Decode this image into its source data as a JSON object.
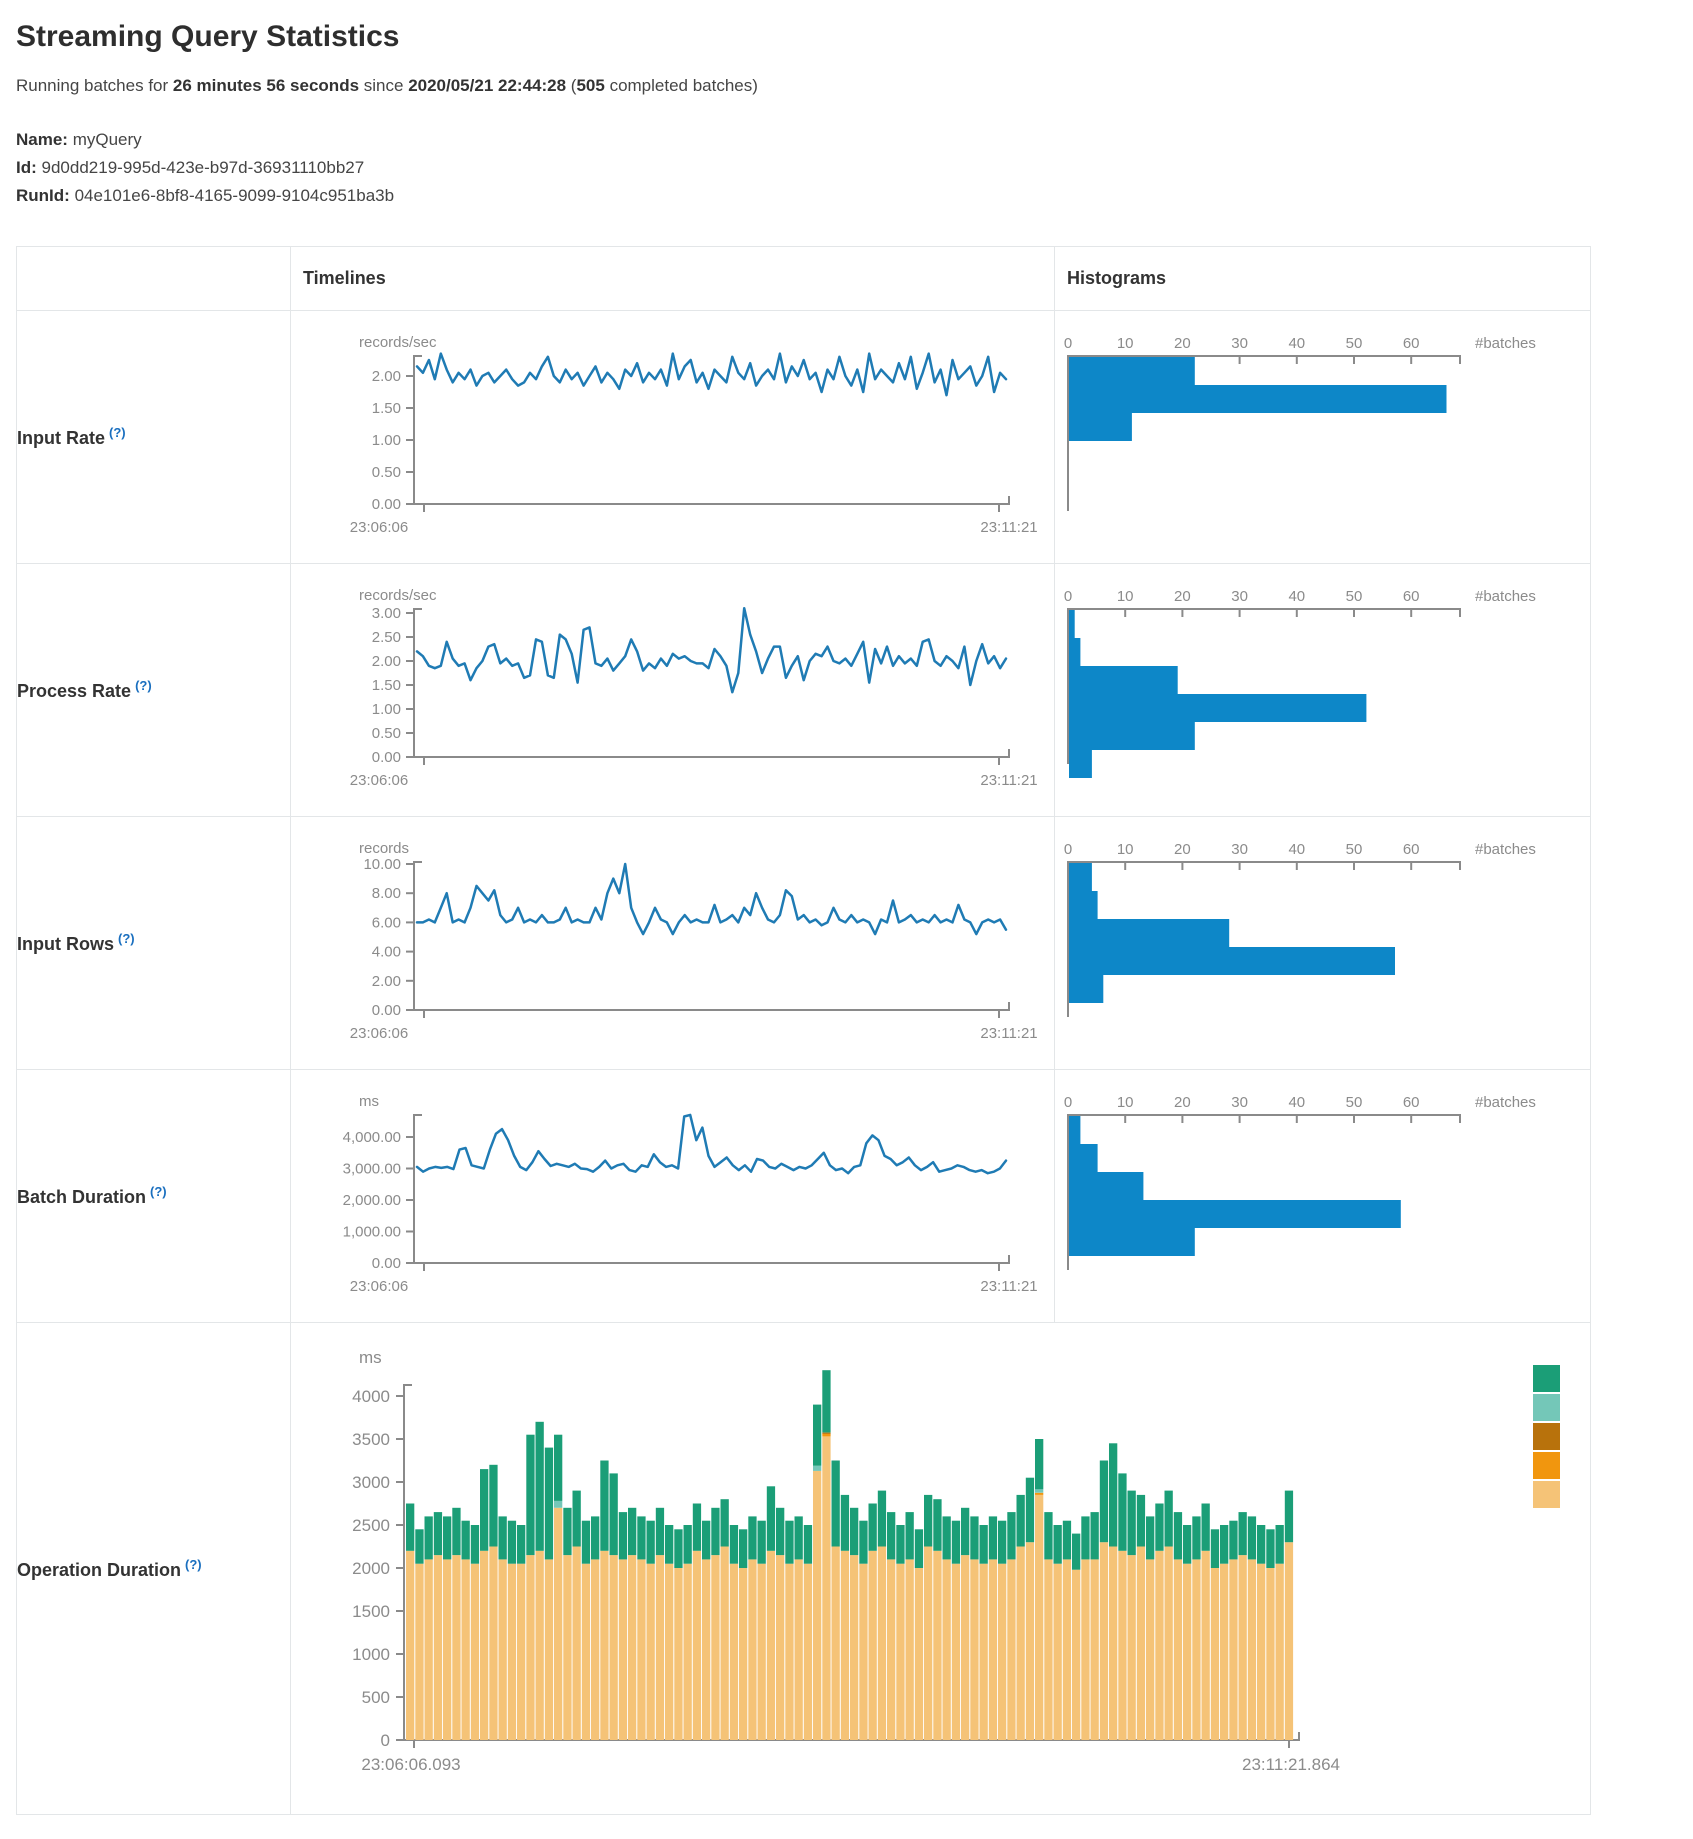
{
  "header": {
    "title": "Streaming Query Statistics",
    "running_prefix": "Running batches for",
    "duration": "26 minutes 56 seconds",
    "since_word": "since",
    "start_time": "2020/05/21 22:44:28",
    "batches_open": "(",
    "batches_count": "505",
    "batches_suffix": "completed batches)",
    "name_label": "Name:",
    "name_value": "myQuery",
    "id_label": "Id:",
    "id_value": "9d0dd219-995d-423e-b97d-36931110bb27",
    "runid_label": "RunId:",
    "runid_value": "04e101e6-8bf8-4165-9099-9104c951ba3b"
  },
  "columns": {
    "timelines": "Timelines",
    "histograms": "Histograms"
  },
  "rows": [
    {
      "label": "Input Rate",
      "help": "(?)"
    },
    {
      "label": "Process Rate",
      "help": "(?)"
    },
    {
      "label": "Input Rows",
      "help": "(?)"
    },
    {
      "label": "Batch Duration",
      "help": "(?)"
    },
    {
      "label": "Operation Duration",
      "help": "(?)"
    }
  ],
  "colors": {
    "timeline_line": "#1f7bb4",
    "histogram_bar": "#0d87c8",
    "axis_gray": "#8a8a8a",
    "stack_teal": "#1b9e77",
    "stack_light_teal": "#74c7b8",
    "stack_ochre": "#b8720c",
    "stack_orange": "#f1960e",
    "stack_tan": "#f5c377"
  },
  "chart_data": [
    {
      "name": "input-rate-timeline",
      "type": "line",
      "unit": "records/sec",
      "color": "#1f7bb4",
      "x_labels": [
        "23:06:06",
        "23:11:21"
      ],
      "ppu": 64,
      "ticks": [
        {
          "v": 2,
          "label": "2.00"
        },
        {
          "v": 1.5,
          "label": "1.50"
        },
        {
          "v": 1,
          "label": "1.00"
        },
        {
          "v": 0.5,
          "label": "0.50"
        },
        {
          "v": 0,
          "label": "0.00"
        }
      ],
      "values": [
        2.15,
        2.05,
        2.25,
        1.95,
        2.35,
        2.1,
        1.9,
        2.05,
        1.95,
        2.1,
        1.85,
        2.0,
        2.05,
        1.9,
        2.0,
        2.1,
        1.95,
        1.85,
        1.9,
        2.05,
        1.95,
        2.15,
        2.3,
        2.0,
        1.9,
        2.1,
        1.95,
        2.05,
        1.85,
        2.0,
        2.15,
        1.9,
        2.05,
        1.95,
        1.8,
        2.1,
        2.0,
        2.2,
        1.9,
        2.05,
        1.95,
        2.1,
        1.85,
        2.35,
        1.95,
        2.15,
        2.25,
        1.9,
        2.05,
        1.8,
        2.1,
        2.0,
        1.9,
        2.3,
        2.05,
        1.95,
        2.2,
        1.85,
        2.0,
        2.1,
        1.95,
        2.35,
        1.9,
        2.15,
        2.0,
        2.25,
        1.95,
        2.05,
        1.75,
        2.1,
        1.95,
        2.3,
        2.0,
        1.85,
        2.1,
        1.75,
        2.35,
        1.95,
        2.1,
        2.0,
        1.9,
        2.2,
        1.95,
        2.3,
        1.8,
        2.05,
        2.35,
        1.9,
        2.1,
        1.7,
        2.25,
        1.95,
        2.05,
        2.15,
        1.85,
        2.0,
        2.3,
        1.75,
        2.05,
        1.95
      ]
    },
    {
      "name": "input-rate-histogram",
      "type": "hbar",
      "unit": "#batches",
      "color": "#0d87c8",
      "tick_values": [
        0,
        10,
        20,
        30,
        40,
        50,
        60
      ],
      "tick_labels": [
        "0",
        "10",
        "20",
        "30",
        "40",
        "50",
        "60"
      ],
      "values": [
        22,
        66,
        11
      ]
    },
    {
      "name": "process-rate-timeline",
      "type": "line",
      "unit": "records/sec",
      "color": "#1f7bb4",
      "x_labels": [
        "23:06:06",
        "23:11:21"
      ],
      "ppu": 48,
      "ticks": [
        {
          "v": 3,
          "label": "3.00"
        },
        {
          "v": 2.5,
          "label": "2.50"
        },
        {
          "v": 2,
          "label": "2.00"
        },
        {
          "v": 1.5,
          "label": "1.50"
        },
        {
          "v": 1,
          "label": "1.00"
        },
        {
          "v": 0.5,
          "label": "0.50"
        },
        {
          "v": 0,
          "label": "0.00"
        }
      ],
      "values": [
        2.2,
        2.1,
        1.9,
        1.85,
        1.9,
        2.4,
        2.05,
        1.9,
        1.95,
        1.6,
        1.85,
        2.0,
        2.3,
        2.35,
        1.95,
        2.05,
        1.9,
        1.95,
        1.65,
        1.7,
        2.45,
        2.4,
        1.7,
        1.65,
        2.55,
        2.45,
        2.15,
        1.55,
        2.65,
        2.7,
        1.95,
        1.9,
        2.05,
        1.8,
        1.95,
        2.1,
        2.45,
        2.2,
        1.8,
        1.95,
        1.85,
        2.05,
        1.9,
        2.15,
        2.05,
        2.1,
        2.0,
        1.95,
        1.95,
        1.85,
        2.25,
        2.1,
        1.9,
        1.35,
        1.75,
        3.1,
        2.55,
        2.2,
        1.75,
        2.05,
        2.3,
        2.3,
        1.65,
        1.9,
        2.1,
        1.6,
        2.0,
        2.15,
        2.1,
        2.3,
        2.0,
        1.95,
        2.05,
        1.9,
        2.15,
        2.4,
        1.55,
        2.25,
        1.95,
        2.3,
        1.9,
        2.1,
        1.95,
        2.05,
        1.9,
        2.4,
        2.45,
        2.0,
        1.9,
        2.1,
        2.0,
        1.85,
        2.3,
        1.5,
        2.0,
        2.35,
        1.95,
        2.1,
        1.85,
        2.05
      ]
    },
    {
      "name": "process-rate-histogram",
      "type": "hbar",
      "unit": "#batches",
      "color": "#0d87c8",
      "tick_values": [
        0,
        10,
        20,
        30,
        40,
        50,
        60
      ],
      "tick_labels": [
        "0",
        "10",
        "20",
        "30",
        "40",
        "50",
        "60"
      ],
      "values": [
        1,
        2,
        19,
        52,
        22,
        4
      ]
    },
    {
      "name": "input-rows-timeline",
      "type": "line",
      "unit": "records",
      "color": "#1f7bb4",
      "x_labels": [
        "23:06:06",
        "23:11:21"
      ],
      "ppu": 14.6,
      "ticks": [
        {
          "v": 10,
          "label": "10.00"
        },
        {
          "v": 8,
          "label": "8.00"
        },
        {
          "v": 6,
          "label": "6.00"
        },
        {
          "v": 4,
          "label": "4.00"
        },
        {
          "v": 2,
          "label": "2.00"
        },
        {
          "v": 0,
          "label": "0.00"
        }
      ],
      "values": [
        6,
        6,
        6.2,
        6,
        7,
        8,
        6,
        6.2,
        6,
        7,
        8.5,
        8,
        7.5,
        8.2,
        6.5,
        6,
        6.2,
        7,
        6,
        6.2,
        6,
        6.5,
        6,
        6,
        6.2,
        7,
        6,
        6.2,
        6,
        6,
        7,
        6.2,
        8,
        9,
        8,
        10,
        7,
        6,
        5.2,
        6,
        7,
        6.2,
        6,
        5.2,
        6,
        6.5,
        6,
        6.2,
        6,
        6,
        7.2,
        6,
        6.2,
        6.5,
        6,
        7,
        6.5,
        8,
        7,
        6.2,
        6,
        6.5,
        8.2,
        7.8,
        6.2,
        6.5,
        6,
        6.2,
        5.8,
        6,
        7,
        6.2,
        6,
        6.5,
        6,
        6.2,
        6,
        5.2,
        6.2,
        6,
        7.5,
        6,
        6.2,
        6.5,
        6,
        6.2,
        6,
        6.5,
        6,
        6.2,
        6,
        7.2,
        6.2,
        6,
        5.2,
        6,
        6.2,
        6,
        6.2,
        5.5
      ]
    },
    {
      "name": "input-rows-histogram",
      "type": "hbar",
      "unit": "#batches",
      "color": "#0d87c8",
      "tick_values": [
        0,
        10,
        20,
        30,
        40,
        50,
        60
      ],
      "tick_labels": [
        "0",
        "10",
        "20",
        "30",
        "40",
        "50",
        "60"
      ],
      "values": [
        4,
        5,
        28,
        57,
        6
      ]
    },
    {
      "name": "batch-duration-timeline",
      "type": "line",
      "unit": "ms",
      "color": "#1f7bb4",
      "x_labels": [
        "23:06:06",
        "23:11:21"
      ],
      "ppu": 0.0315,
      "ticks": [
        {
          "v": 4000,
          "label": "4,000.00"
        },
        {
          "v": 3000,
          "label": "3,000.00"
        },
        {
          "v": 2000,
          "label": "2,000.00"
        },
        {
          "v": 1000,
          "label": "1,000.00"
        },
        {
          "v": 0,
          "label": "0.00"
        }
      ],
      "values": [
        3050,
        2900,
        3000,
        3050,
        3020,
        3050,
        2980,
        3600,
        3650,
        3100,
        3050,
        3000,
        3600,
        4100,
        4250,
        3900,
        3400,
        3050,
        2950,
        3200,
        3550,
        3300,
        3080,
        3150,
        3100,
        3050,
        3150,
        3000,
        2980,
        2900,
        3050,
        3250,
        3000,
        3100,
        3150,
        2950,
        2900,
        3100,
        3050,
        3450,
        3200,
        3050,
        3100,
        3000,
        4650,
        4700,
        3900,
        4300,
        3400,
        3050,
        3200,
        3350,
        3100,
        2950,
        3100,
        2900,
        3300,
        3250,
        3050,
        3000,
        3150,
        3050,
        2950,
        3050,
        3000,
        3100,
        3300,
        3500,
        3100,
        2950,
        3000,
        2850,
        3050,
        3100,
        3800,
        4050,
        3900,
        3400,
        3300,
        3100,
        3200,
        3350,
        3100,
        2950,
        3050,
        3200,
        2900,
        2950,
        3000,
        3100,
        3050,
        2950,
        2900,
        2950,
        2850,
        2900,
        3000,
        3250
      ]
    },
    {
      "name": "batch-duration-histogram",
      "type": "hbar",
      "unit": "#batches",
      "color": "#0d87c8",
      "tick_values": [
        0,
        10,
        20,
        30,
        40,
        50,
        60
      ],
      "tick_labels": [
        "0",
        "10",
        "20",
        "30",
        "40",
        "50",
        "60"
      ],
      "values": [
        2,
        5,
        13,
        58,
        22
      ]
    },
    {
      "name": "operation-duration-stack",
      "type": "stack",
      "unit": "ms",
      "n": 96,
      "ppu": 0.086,
      "x_labels": [
        "23:06:06.093",
        "23:11:21.864"
      ],
      "tick_values": [
        0,
        500,
        1000,
        1500,
        2000,
        2500,
        3000,
        3500,
        4000
      ],
      "tick_labels": [
        "0",
        "500",
        "1000",
        "1500",
        "2000",
        "2500",
        "3000",
        "3500",
        "4000"
      ],
      "legend_colors": [
        "#1b9e77",
        "#74c7b8",
        "#b8720c",
        "#f1960e",
        "#f5c377"
      ],
      "series": [
        {
          "name": "op-tan",
          "color": "#f5c377",
          "values": [
            2200,
            2050,
            2100,
            2150,
            2100,
            2150,
            2100,
            2050,
            2200,
            2250,
            2100,
            2050,
            2050,
            2150,
            2200,
            2100,
            2700,
            2150,
            2250,
            2050,
            2100,
            2200,
            2150,
            2100,
            2150,
            2100,
            2050,
            2150,
            2050,
            2000,
            2050,
            2200,
            2100,
            2150,
            2250,
            2050,
            2000,
            2100,
            2050,
            2200,
            2150,
            2050,
            2100,
            2050,
            3130,
            3530,
            2250,
            2200,
            2150,
            2050,
            2200,
            2250,
            2100,
            2050,
            2100,
            2000,
            2250,
            2200,
            2100,
            2050,
            2150,
            2100,
            2050,
            2100,
            2050,
            2100,
            2250,
            2300,
            2850,
            2100,
            2050,
            2100,
            1980,
            2100,
            2100,
            2300,
            2250,
            2200,
            2150,
            2250,
            2100,
            2200,
            2250,
            2100,
            2050,
            2100,
            2200,
            2000,
            2050,
            2100,
            2150,
            2100,
            2050,
            2000,
            2050,
            2300
          ]
        },
        {
          "name": "op-orange",
          "color": "#f1960e",
          "sparse": {
            "45": 30,
            "68": 25
          }
        },
        {
          "name": "op-ochre",
          "color": "#b8720c",
          "sparse": {
            "45": 15
          }
        },
        {
          "name": "op-light-teal",
          "color": "#74c7b8",
          "sparse": {
            "16": 80,
            "44": 60,
            "68": 40
          }
        },
        {
          "name": "op-teal",
          "color": "#1b9e77",
          "values": [
            550,
            400,
            500,
            500,
            500,
            550,
            450,
            450,
            950,
            950,
            500,
            500,
            450,
            1400,
            1500,
            1300,
            770,
            550,
            650,
            500,
            500,
            1050,
            950,
            550,
            550,
            500,
            500,
            550,
            450,
            450,
            450,
            550,
            450,
            550,
            550,
            450,
            450,
            500,
            500,
            750,
            550,
            500,
            500,
            450,
            710,
            725,
            1000,
            650,
            550,
            500,
            550,
            650,
            550,
            450,
            550,
            450,
            600,
            600,
            500,
            500,
            550,
            500,
            450,
            500,
            500,
            550,
            600,
            750,
            585,
            550,
            450,
            450,
            420,
            500,
            550,
            950,
            1200,
            900,
            750,
            600,
            500,
            550,
            650,
            550,
            450,
            500,
            550,
            450,
            450,
            450,
            500,
            500,
            450,
            450,
            450,
            600
          ]
        }
      ]
    }
  ]
}
